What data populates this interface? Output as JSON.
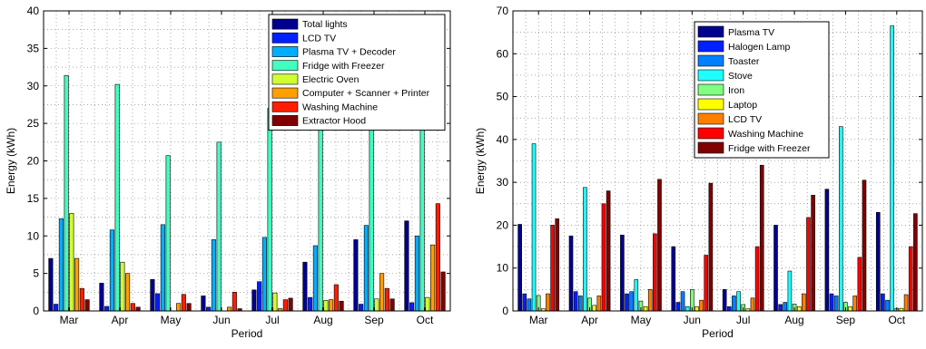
{
  "chart_data": [
    {
      "type": "bar",
      "xlabel": "Period",
      "ylabel": "Energy (kWh)",
      "ylim": [
        0,
        40
      ],
      "yticks": [
        0,
        5,
        10,
        15,
        20,
        25,
        30,
        35,
        40
      ],
      "grid": true,
      "legend_position": "top-right",
      "categories": [
        "Mar",
        "Apr",
        "May",
        "Jun",
        "Jul",
        "Aug",
        "Sep",
        "Oct"
      ],
      "series": [
        {
          "name": "Total lights",
          "color": "#00008f",
          "values": [
            7.0,
            3.7,
            4.2,
            2.0,
            2.8,
            6.5,
            9.5,
            12.0
          ]
        },
        {
          "name": "LCD TV",
          "color": "#0020ff",
          "values": [
            0.9,
            0.6,
            2.3,
            0.5,
            3.9,
            1.8,
            0.9,
            1.1
          ]
        },
        {
          "name": "Plasma TV + Decoder",
          "color": "#00afff",
          "values": [
            12.3,
            10.8,
            11.5,
            9.5,
            9.8,
            8.7,
            11.4,
            10.0
          ]
        },
        {
          "name": "Fridge with Freezer",
          "color": "#40ffbf",
          "values": [
            31.4,
            30.2,
            20.7,
            22.5,
            27.0,
            27.0,
            27.0,
            25.0
          ]
        },
        {
          "name": "Electric Oven",
          "color": "#cfff30",
          "values": [
            13.0,
            6.5,
            0.0,
            0.0,
            2.4,
            1.4,
            1.6,
            1.8
          ]
        },
        {
          "name": "Computer + Scanner + Printer",
          "color": "#ff9f00",
          "values": [
            7.0,
            5.0,
            1.0,
            0.5,
            0.3,
            1.5,
            5.0,
            8.8
          ]
        },
        {
          "name": "Washing Machine",
          "color": "#ff1f00",
          "values": [
            3.0,
            1.0,
            2.2,
            2.5,
            1.5,
            3.5,
            3.0,
            14.3
          ]
        },
        {
          "name": "Extractor Hood",
          "color": "#800000",
          "values": [
            1.5,
            0.5,
            1.0,
            0.3,
            1.7,
            1.3,
            1.6,
            5.2
          ]
        }
      ]
    },
    {
      "type": "bar",
      "xlabel": "Period",
      "ylabel": "Energy (kWh)",
      "ylim": [
        0,
        70
      ],
      "yticks": [
        0,
        10,
        20,
        30,
        40,
        50,
        60,
        70
      ],
      "grid": true,
      "legend_position": "top-right",
      "categories": [
        "Mar",
        "Apr",
        "May",
        "Jun",
        "Jul",
        "Aug",
        "Sep",
        "Oct"
      ],
      "series": [
        {
          "name": "Plasma TV",
          "color": "#00008f",
          "values": [
            20.2,
            17.5,
            17.7,
            15.0,
            5.0,
            20.0,
            28.4,
            23.0
          ]
        },
        {
          "name": "Halogen Lamp",
          "color": "#0020ff",
          "values": [
            4.0,
            4.5,
            4.0,
            2.0,
            1.0,
            1.5,
            4.0,
            4.0
          ]
        },
        {
          "name": "Toaster",
          "color": "#0080ff",
          "values": [
            2.8,
            3.5,
            4.5,
            4.5,
            3.5,
            2.0,
            3.5,
            2.5
          ]
        },
        {
          "name": "Stove",
          "color": "#20ffff",
          "values": [
            39.0,
            28.8,
            7.3,
            1.0,
            4.5,
            9.3,
            43.0,
            66.5
          ]
        },
        {
          "name": "Iron",
          "color": "#80ff80",
          "values": [
            3.6,
            3.0,
            2.3,
            5.0,
            1.5,
            1.6,
            2.0,
            0.6
          ]
        },
        {
          "name": "Laptop",
          "color": "#ffff00",
          "values": [
            0.5,
            1.3,
            1.0,
            1.0,
            0.5,
            1.0,
            1.0,
            0.6
          ]
        },
        {
          "name": "LCD TV",
          "color": "#ff8000",
          "values": [
            4.0,
            3.5,
            5.0,
            2.5,
            3.0,
            4.0,
            3.5,
            3.8
          ]
        },
        {
          "name": "Washing Machine",
          "color": "#ff0000",
          "values": [
            20.0,
            25.0,
            18.0,
            13.0,
            15.0,
            21.8,
            12.5,
            15.0
          ]
        },
        {
          "name": "Fridge with Freezer",
          "color": "#800000",
          "values": [
            21.5,
            28.0,
            30.7,
            29.8,
            34.0,
            27.0,
            30.5,
            22.7
          ]
        }
      ]
    }
  ]
}
